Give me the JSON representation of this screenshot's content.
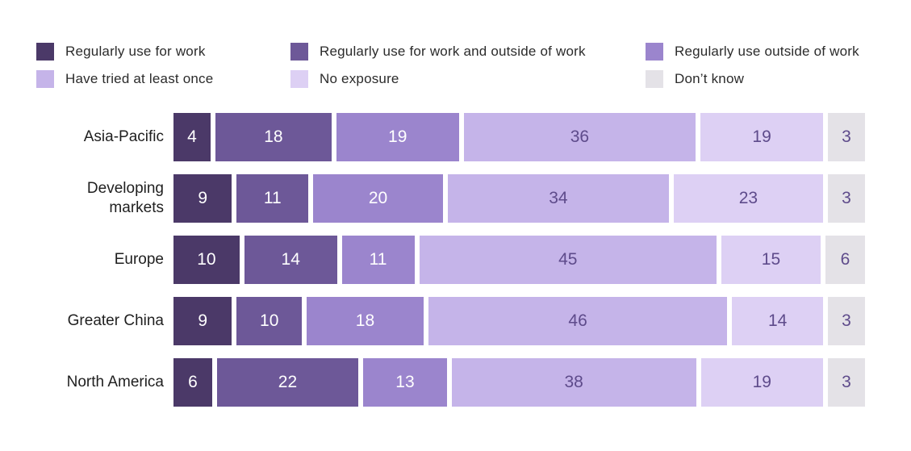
{
  "chart_data": {
    "type": "bar",
    "variant": "horizontal-stacked",
    "title": "",
    "legend_position": "top",
    "grid": false,
    "axis_labels_hidden": true,
    "categories": [
      "Asia-Pacific",
      "Developing\nmarkets",
      "Europe",
      "Greater China",
      "North America"
    ],
    "series": [
      {
        "name": "Regularly use for work",
        "color": "#4b3968",
        "text_color": "#ffffff",
        "values": [
          4,
          9,
          10,
          9,
          6
        ]
      },
      {
        "name": "Regularly use for work and outside of work",
        "color": "#6d5898",
        "text_color": "#ffffff",
        "values": [
          18,
          11,
          14,
          10,
          22
        ]
      },
      {
        "name": "Regularly use outside of work",
        "color": "#9b85cd",
        "text_color": "#ffffff",
        "values": [
          19,
          20,
          11,
          18,
          13
        ]
      },
      {
        "name": "Have tried at least once",
        "color": "#c5b4e9",
        "text_color": "#5e4b8b",
        "values": [
          36,
          34,
          45,
          46,
          38
        ]
      },
      {
        "name": "No exposure",
        "color": "#ddd0f4",
        "text_color": "#5e4b8b",
        "values": [
          19,
          23,
          15,
          14,
          19
        ]
      },
      {
        "name": "Don’t know",
        "color": "#e4e2e7",
        "text_color": "#5e4b8b",
        "values": [
          3,
          3,
          6,
          3,
          3
        ]
      }
    ]
  }
}
